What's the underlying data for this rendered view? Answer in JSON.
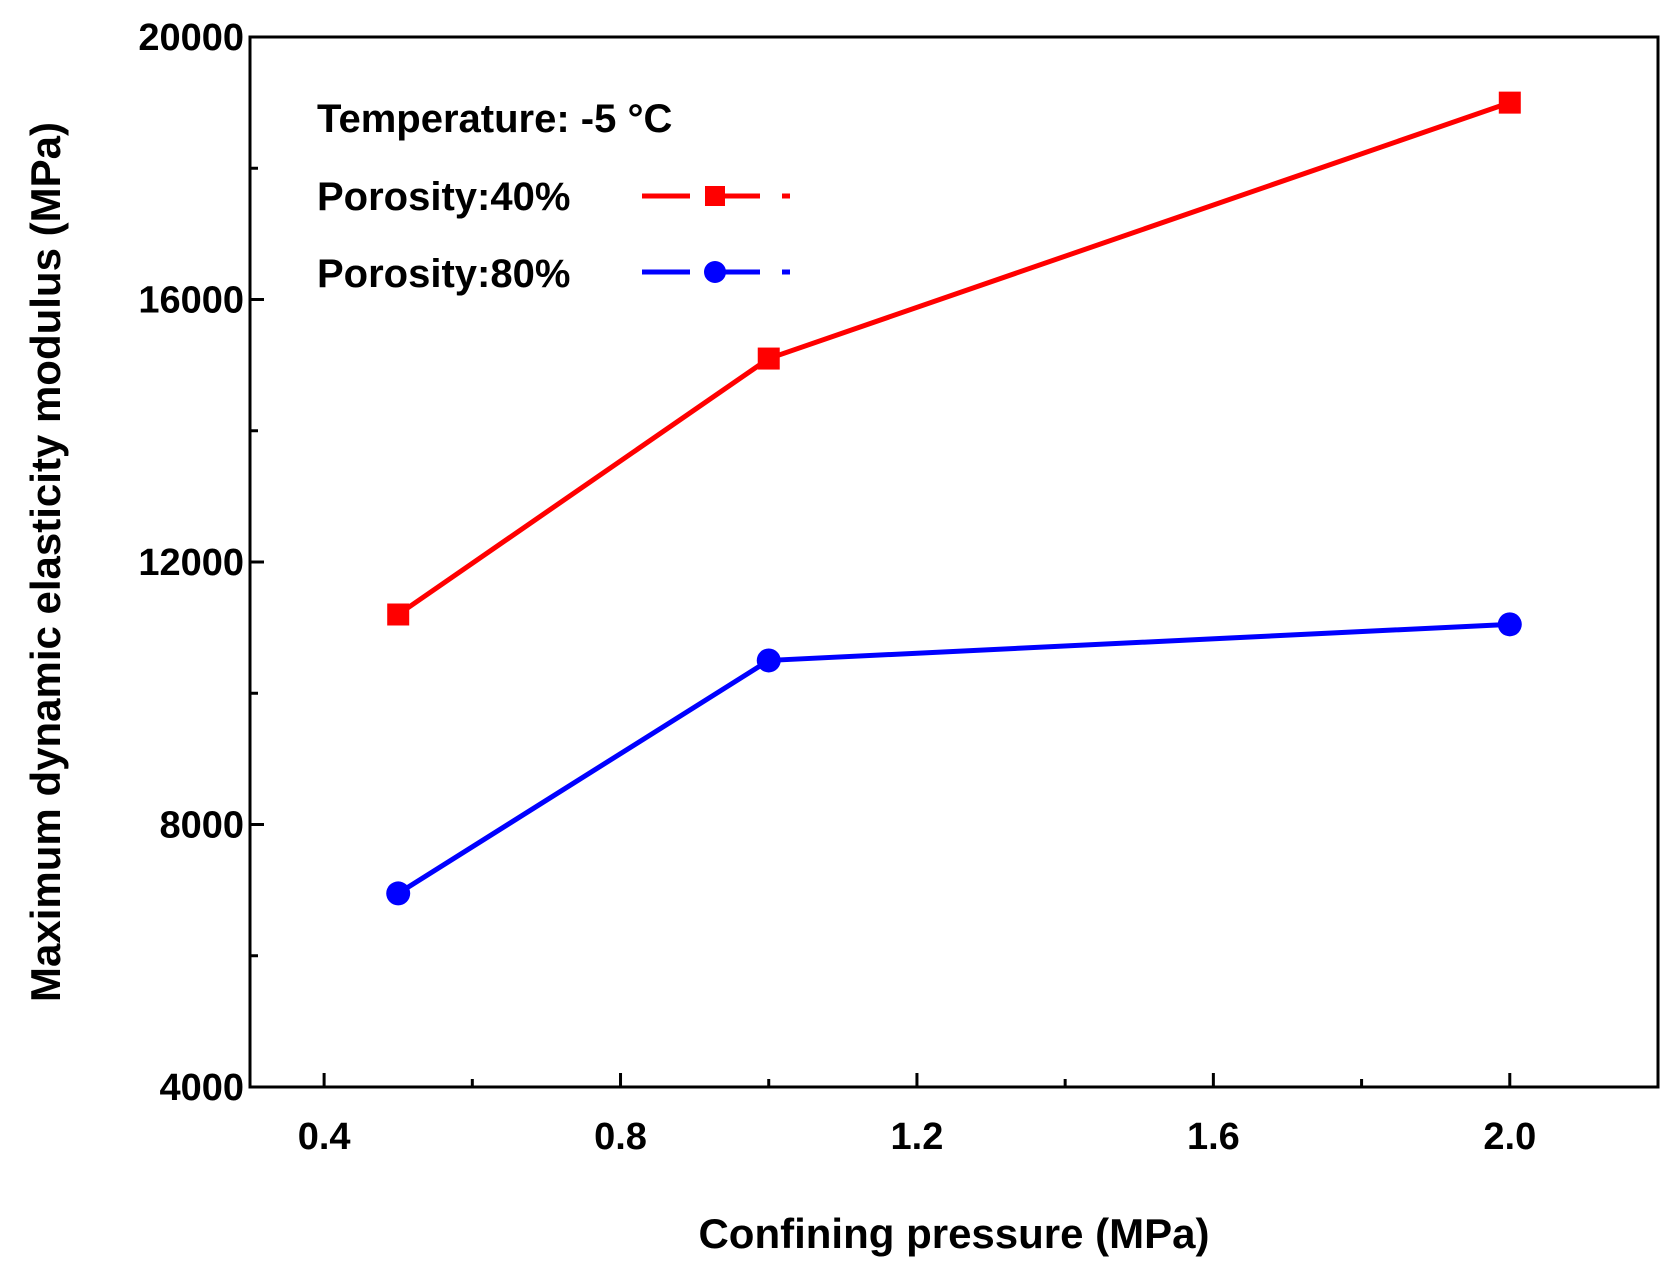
{
  "chart_data": {
    "type": "line",
    "title": "",
    "xlabel": "Confining pressure (MPa)",
    "ylabel": "Maximum dynamic elasticity modulus (MPa)",
    "xlim": [
      0.3,
      2.2
    ],
    "ylim": [
      4000,
      20000
    ],
    "x_ticks": [
      0.4,
      0.8,
      1.2,
      1.6,
      2.0
    ],
    "x_tick_labels": [
      "0.4",
      "0.8",
      "1.2",
      "1.6",
      "2.0"
    ],
    "x_minor_ticks": [
      0.6,
      1.0,
      1.4,
      1.8
    ],
    "y_ticks": [
      4000,
      8000,
      12000,
      16000,
      20000
    ],
    "y_tick_labels": [
      "4000",
      "8000",
      "12000",
      "16000",
      "20000"
    ],
    "y_minor_ticks": [
      6000,
      10000,
      14000,
      18000
    ],
    "grid": false,
    "legend_position": "top-left",
    "annotation": "Temperature: -5 °C",
    "x": [
      0.5,
      1.0,
      2.0
    ],
    "series": [
      {
        "name": "Porosity:40%",
        "marker": "square",
        "color": "#ff0000",
        "values": [
          11200,
          15100,
          19000
        ]
      },
      {
        "name": "Porosity:80%",
        "marker": "circle",
        "color": "#0000ff",
        "values": [
          6950,
          10500,
          11050
        ]
      }
    ]
  }
}
